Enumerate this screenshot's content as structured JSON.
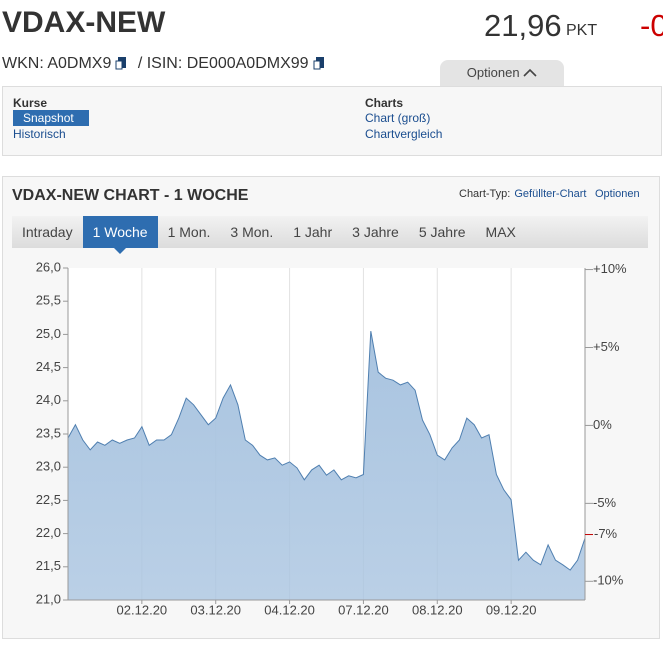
{
  "header": {
    "title": "VDAX-NEW",
    "price": "21,96",
    "unit": "PKT",
    "change": "-0",
    "wkn": "WKN: A0DMX9",
    "isin": "/ ISIN: DE000A0DMX99",
    "options_tab": "Optionen"
  },
  "nav": {
    "kurse": {
      "heading": "Kurse",
      "links": [
        "Snapshot",
        "Historisch"
      ]
    },
    "charts": {
      "heading": "Charts",
      "links": [
        "Chart (groß)",
        "Chartvergleich"
      ]
    }
  },
  "panel": {
    "title": "VDAX-NEW CHART - 1 WOCHE",
    "chart_type_label": "Chart-Typ:",
    "chart_type": "Gefüllter-Chart",
    "options": "Optionen",
    "tabs": [
      "Intraday",
      "1 Woche",
      "1 Mon.",
      "3 Mon.",
      "1 Jahr",
      "3 Jahre",
      "5 Jahre",
      "MAX"
    ],
    "active_tab": 1
  },
  "chart_data": {
    "type": "area",
    "color": "#a9c4e0",
    "line_color": "#4f7fb0",
    "grid": true,
    "values": [
      23.44,
      23.64,
      23.41,
      23.26,
      23.38,
      23.33,
      23.41,
      23.36,
      23.41,
      23.44,
      23.61,
      23.33,
      23.41,
      23.41,
      23.49,
      23.74,
      24.04,
      23.94,
      23.79,
      23.64,
      23.74,
      24.04,
      24.24,
      23.94,
      23.41,
      23.33,
      23.18,
      23.11,
      23.14,
      23.03,
      23.08,
      22.99,
      22.81,
      22.96,
      23.03,
      22.88,
      22.96,
      22.81,
      22.87,
      22.84,
      22.89,
      25.05,
      24.43,
      24.34,
      24.31,
      24.24,
      24.28,
      24.16,
      23.71,
      23.49,
      23.18,
      23.11,
      23.29,
      23.41,
      23.74,
      23.64,
      23.44,
      23.49,
      22.89,
      22.66,
      22.51,
      21.6,
      21.72,
      21.6,
      21.53,
      21.83,
      21.6,
      21.53,
      21.45,
      21.6,
      21.93
    ],
    "xlim": [
      0,
      70
    ],
    "xticks": [
      {
        "value": 10,
        "label": "02.12.20"
      },
      {
        "value": 20,
        "label": "03.12.20"
      },
      {
        "value": 30,
        "label": "04.12.20"
      },
      {
        "value": 40,
        "label": "07.12.20"
      },
      {
        "value": 50,
        "label": "08.12.20"
      },
      {
        "value": 60,
        "label": "09.12.20"
      }
    ],
    "ylim": [
      21,
      26
    ],
    "yticks": [
      {
        "value": 21,
        "label": "21,0"
      },
      {
        "value": 21.5,
        "label": "21,5"
      },
      {
        "value": 22,
        "label": "22,0"
      },
      {
        "value": 22.5,
        "label": "22,5"
      },
      {
        "value": 23,
        "label": "23,0"
      },
      {
        "value": 23.5,
        "label": "23,5"
      },
      {
        "value": 24,
        "label": "24,0"
      },
      {
        "value": 24.5,
        "label": "24,5"
      },
      {
        "value": 25,
        "label": "25,0"
      },
      {
        "value": 25.5,
        "label": "25,5"
      },
      {
        "value": 26,
        "label": "26,0"
      }
    ],
    "y2lim": [
      -11.2,
      10.1
    ],
    "y2ticks": [
      {
        "value": 10,
        "label": "+10%"
      },
      {
        "value": 5,
        "label": "+5%"
      },
      {
        "value": 0,
        "label": "0%"
      },
      {
        "value": -5,
        "label": "-5%"
      },
      {
        "value": -10,
        "label": "-10%"
      }
    ],
    "y2_marker": {
      "value": -7,
      "label": "-7%",
      "color": "#c00000"
    }
  }
}
